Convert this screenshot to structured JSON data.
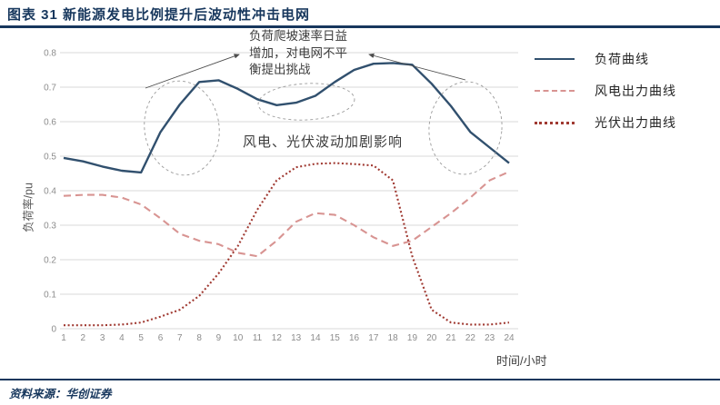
{
  "header": {
    "title": "图表 31  新能源发电比例提升后波动性冲击电网"
  },
  "footer": {
    "source": "资料来源：华创证券"
  },
  "chart_data": {
    "type": "line",
    "x": [
      1,
      2,
      3,
      4,
      5,
      6,
      7,
      8,
      9,
      10,
      11,
      12,
      13,
      14,
      15,
      16,
      17,
      18,
      19,
      20,
      21,
      22,
      23,
      24
    ],
    "series": [
      {
        "name": "负荷曲线",
        "style": "solid",
        "color": "#31506e",
        "values": [
          0.495,
          0.485,
          0.47,
          0.458,
          0.453,
          0.57,
          0.65,
          0.715,
          0.72,
          0.695,
          0.665,
          0.648,
          0.655,
          0.675,
          0.715,
          0.75,
          0.768,
          0.77,
          0.765,
          0.71,
          0.645,
          0.57,
          0.525,
          0.48
        ]
      },
      {
        "name": "风电出力曲线",
        "style": "dashed",
        "color": "#d89492",
        "values": [
          0.385,
          0.388,
          0.388,
          0.38,
          0.36,
          0.32,
          0.275,
          0.255,
          0.245,
          0.22,
          0.21,
          0.255,
          0.31,
          0.335,
          0.33,
          0.3,
          0.265,
          0.24,
          0.255,
          0.295,
          0.335,
          0.38,
          0.43,
          0.455
        ]
      },
      {
        "name": "光伏出力曲线",
        "style": "dotted",
        "color": "#a03a32",
        "values": [
          0.01,
          0.01,
          0.01,
          0.012,
          0.018,
          0.035,
          0.055,
          0.095,
          0.16,
          0.24,
          0.345,
          0.43,
          0.468,
          0.478,
          0.48,
          0.477,
          0.473,
          0.43,
          0.21,
          0.055,
          0.018,
          0.012,
          0.012,
          0.018
        ]
      }
    ],
    "xlabel": "时间/小时",
    "ylabel": "负荷率/pu",
    "ylim": [
      0,
      0.8
    ],
    "yticks": [
      "0",
      "0.1",
      "0.2",
      "0.3",
      "0.4",
      "0.5",
      "0.6",
      "0.7",
      "0.8"
    ],
    "xticks": [
      "1",
      "2",
      "3",
      "4",
      "5",
      "6",
      "7",
      "8",
      "9",
      "10",
      "11",
      "12",
      "13",
      "14",
      "15",
      "16",
      "17",
      "18",
      "19",
      "20",
      "21",
      "22",
      "23",
      "24"
    ],
    "grid": true,
    "legend_position": "right",
    "annotations": [
      {
        "id": "ramp-note",
        "text": "负荷爬坡速率日益\n增加，对电网不平\n衡提出挑战"
      },
      {
        "id": "fluctuation-note",
        "text": "风电、光伏波动加剧影响"
      }
    ],
    "colors": {
      "grid": "#d9d9d9",
      "tick_text": "#8c8c8c",
      "accent_navy": "#17375d",
      "ellipse": "#9a9a9a",
      "arrow": "#4d4d4d"
    }
  }
}
